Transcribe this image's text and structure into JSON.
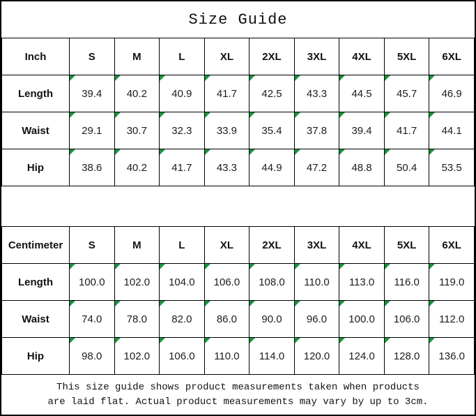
{
  "title": "Size Guide",
  "sizes": [
    "S",
    "M",
    "L",
    "XL",
    "2XL",
    "3XL",
    "4XL",
    "5XL",
    "6XL"
  ],
  "tables": [
    {
      "unit_label": "Inch",
      "rows": [
        {
          "label": "Length",
          "values": [
            "39.4",
            "40.2",
            "40.9",
            "41.7",
            "42.5",
            "43.3",
            "44.5",
            "45.7",
            "46.9"
          ]
        },
        {
          "label": "Waist",
          "values": [
            "29.1",
            "30.7",
            "32.3",
            "33.9",
            "35.4",
            "37.8",
            "39.4",
            "41.7",
            "44.1"
          ]
        },
        {
          "label": "Hip",
          "values": [
            "38.6",
            "40.2",
            "41.7",
            "43.3",
            "44.9",
            "47.2",
            "48.8",
            "50.4",
            "53.5"
          ]
        }
      ]
    },
    {
      "unit_label": "Centimeter",
      "rows": [
        {
          "label": "Length",
          "values": [
            "100.0",
            "102.0",
            "104.0",
            "106.0",
            "108.0",
            "110.0",
            "113.0",
            "116.0",
            "119.0"
          ]
        },
        {
          "label": "Waist",
          "values": [
            "74.0",
            "78.0",
            "82.0",
            "86.0",
            "90.0",
            "96.0",
            "100.0",
            "106.0",
            "112.0"
          ]
        },
        {
          "label": "Hip",
          "values": [
            "98.0",
            "102.0",
            "106.0",
            "110.0",
            "114.0",
            "120.0",
            "124.0",
            "128.0",
            "136.0"
          ]
        }
      ]
    }
  ],
  "footer": {
    "lines": [
      "This size guide shows product measurements taken when products",
      "are laid flat. Actual product measurements may vary by up to 3cm."
    ]
  },
  "colors": {
    "border": "#000000",
    "flag_green": "#18953d",
    "background": "#ffffff",
    "text": "#1c1c1c"
  }
}
